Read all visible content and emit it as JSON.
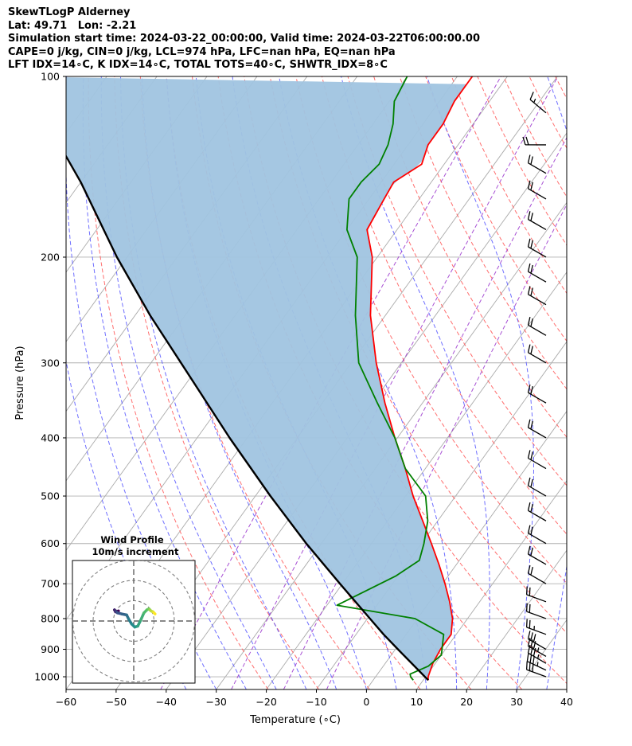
{
  "header": {
    "lines": [
      "SkewTLogP Alderney",
      "Lat: 49.71   Lon: -2.21",
      "Simulation start time: 2024-03-22_00:00:00, Valid time: 2024-03-22T06:00:00.00",
      "CAPE=0 j/kg, CIN=0 j/kg, LCL=974 hPa, LFC=nan hPa, EQ=nan hPa",
      "LFT IDX=14∘C, K IDX=14∘C, TOTAL TOTS=40∘C, SHWTR_IDX=8∘C"
    ]
  },
  "chart_data": {
    "type": "line",
    "subtype": "skew-t log-p",
    "xlabel": "Temperature (∘C)",
    "ylabel": "Pressure (hPa)",
    "xlim": [
      -60,
      40
    ],
    "ylim": [
      1050,
      100
    ],
    "yscale": "log",
    "grid": true,
    "x_ticks": [
      "−60",
      "−50",
      "−40",
      "−30",
      "−20",
      "−10",
      "0",
      "10",
      "20",
      "30",
      "40"
    ],
    "y_ticks": [
      "100",
      "200",
      "300",
      "400",
      "500",
      "600",
      "700",
      "800",
      "900",
      "1000"
    ],
    "colors": {
      "temperature": "#ff0000",
      "dewpoint": "#008000",
      "parcel": "#000000",
      "shading": "#a0c4e0",
      "dry_adiabats": "#ff5555",
      "moist_adiabats": "#5555ff",
      "mixing_ratio": "#9933cc",
      "isotherms": "#aaaaaa"
    },
    "series": [
      {
        "key": "temperature",
        "pressure": [
          1013,
          1000,
          950,
          900,
          850,
          800,
          750,
          700,
          650,
          600,
          550,
          500,
          450,
          400,
          350,
          300,
          250,
          200,
          180,
          160,
          150,
          140,
          130,
          120,
          110,
          100
        ],
        "values": [
          11.0,
          10.5,
          9.5,
          9.0,
          9.0,
          7.0,
          4.0,
          0.5,
          -3.5,
          -8.0,
          -13.0,
          -18.5,
          -24.0,
          -30.5,
          -37.5,
          -45.0,
          -53.0,
          -61.0,
          -66.0,
          -67.0,
          -67.5,
          -64.5,
          -66.0,
          -66.0,
          -67.0,
          -67.0
        ]
      },
      {
        "key": "dewpoint",
        "pressure": [
          1013,
          1000,
          990,
          960,
          920,
          850,
          800,
          760,
          680,
          640,
          600,
          550,
          500,
          450,
          400,
          350,
          300,
          250,
          200,
          180,
          160,
          150,
          140,
          130,
          120,
          110,
          100
        ],
        "values": [
          8.0,
          7.0,
          6.5,
          9.0,
          10.0,
          7.5,
          -0.5,
          -18.0,
          -10.5,
          -8.0,
          -9.5,
          -12.0,
          -16.0,
          -24.0,
          -30.5,
          -39.0,
          -48.5,
          -56.0,
          -64.0,
          -70.0,
          -74.0,
          -74.0,
          -73.0,
          -74.0,
          -76.0,
          -79.0,
          -80.0
        ]
      },
      {
        "key": "parcel",
        "pressure": [
          1013,
          974,
          900,
          850,
          800,
          700,
          600,
          500,
          400,
          300,
          250,
          200,
          150,
          120,
          100
        ],
        "values": [
          11.0,
          7.5,
          0.5,
          -4.5,
          -9.5,
          -20.5,
          -33.0,
          -47.0,
          -63.5,
          -84.0,
          -97.0,
          -112.0,
          -130.0,
          -145.0,
          -158.0
        ]
      }
    ],
    "wind_barbs": [
      {
        "pressure": 1000,
        "direction": 290,
        "speed": 30
      },
      {
        "pressure": 975,
        "direction": 295,
        "speed": 35
      },
      {
        "pressure": 950,
        "direction": 300,
        "speed": 35
      },
      {
        "pressure": 925,
        "direction": 300,
        "speed": 35
      },
      {
        "pressure": 900,
        "direction": 300,
        "speed": 30
      },
      {
        "pressure": 850,
        "direction": 290,
        "speed": 25
      },
      {
        "pressure": 800,
        "direction": 290,
        "speed": 20
      },
      {
        "pressure": 750,
        "direction": 290,
        "speed": 20
      },
      {
        "pressure": 700,
        "direction": 300,
        "speed": 20
      },
      {
        "pressure": 650,
        "direction": 300,
        "speed": 20
      },
      {
        "pressure": 600,
        "direction": 300,
        "speed": 20
      },
      {
        "pressure": 550,
        "direction": 300,
        "speed": 20
      },
      {
        "pressure": 500,
        "direction": 300,
        "speed": 20
      },
      {
        "pressure": 450,
        "direction": 300,
        "speed": 20
      },
      {
        "pressure": 400,
        "direction": 300,
        "speed": 20
      },
      {
        "pressure": 350,
        "direction": 300,
        "speed": 20
      },
      {
        "pressure": 300,
        "direction": 300,
        "speed": 20
      },
      {
        "pressure": 270,
        "direction": 300,
        "speed": 20
      },
      {
        "pressure": 240,
        "direction": 300,
        "speed": 20
      },
      {
        "pressure": 220,
        "direction": 300,
        "speed": 20
      },
      {
        "pressure": 200,
        "direction": 300,
        "speed": 20
      },
      {
        "pressure": 180,
        "direction": 300,
        "speed": 20
      },
      {
        "pressure": 160,
        "direction": 300,
        "speed": 20
      },
      {
        "pressure": 145,
        "direction": 300,
        "speed": 20
      },
      {
        "pressure": 130,
        "direction": 270,
        "speed": 20
      },
      {
        "pressure": 115,
        "direction": 310,
        "speed": 15
      }
    ],
    "hodograph": {
      "title": "Wind Profile",
      "subtitle": "10m/s increment",
      "ring_step": 10,
      "rings": [
        10,
        20,
        30
      ],
      "u": [
        -7.5,
        -9.0,
        -9.5,
        -9.0,
        -8.5,
        -8.0,
        -6.0,
        -3.5,
        -2.5,
        -1.0,
        0.5,
        2.0,
        3.5,
        5.0,
        6.5,
        7.5,
        8.0,
        8.5,
        9.5,
        10.0,
        10.5
      ],
      "v": [
        5.0,
        4.5,
        5.5,
        5.0,
        4.5,
        4.0,
        3.5,
        3.0,
        1.0,
        -1.5,
        -3.0,
        -2.5,
        0.5,
        4.0,
        5.5,
        6.0,
        5.5,
        5.0,
        4.5,
        4.0,
        3.5
      ]
    }
  }
}
